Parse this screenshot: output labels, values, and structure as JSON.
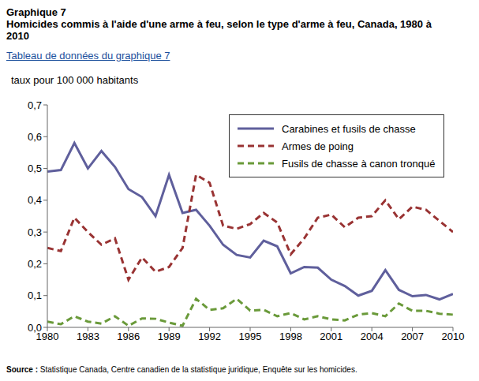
{
  "chart_data": {
    "type": "line",
    "title": "Graphique 7",
    "subtitle": "Homicides commis à l'aide d'une arme à feu, selon le type d'arme à feu, Canada, 1980 à 2010",
    "link": "Tableau de données du graphique 7",
    "y_label": "taux pour 100 000 habitants",
    "source_label": "Source :",
    "source": "Statistique Canada, Centre canadien de la statistique juridique, Enquête sur les homicides.",
    "x": [
      1980,
      1981,
      1982,
      1983,
      1984,
      1985,
      1986,
      1987,
      1988,
      1989,
      1990,
      1991,
      1992,
      1993,
      1994,
      1995,
      1996,
      1997,
      1998,
      1999,
      2000,
      2001,
      2002,
      2003,
      2004,
      2005,
      2006,
      2007,
      2008,
      2009,
      2010
    ],
    "xlim": [
      1980,
      2010
    ],
    "xticks": [
      1980,
      1983,
      1986,
      1989,
      1992,
      1995,
      1998,
      2001,
      2004,
      2007,
      2010
    ],
    "ylim": [
      0,
      0.7
    ],
    "yticks": [
      {
        "value": 0,
        "label": "0,0"
      },
      {
        "value": 0.1,
        "label": "0,1"
      },
      {
        "value": 0.2,
        "label": "0,2"
      },
      {
        "value": 0.3,
        "label": "0,3"
      },
      {
        "value": 0.4,
        "label": "0,4"
      },
      {
        "value": 0.5,
        "label": "0,5"
      },
      {
        "value": 0.6,
        "label": "0,6"
      },
      {
        "value": 0.7,
        "label": "0,7"
      }
    ],
    "grid": false,
    "legend": "top-right",
    "series": [
      {
        "name": "Carabines et fusils de chasse",
        "color": "#5f5f9c",
        "line_style": "solid",
        "values": [
          0.49,
          0.495,
          0.58,
          0.5,
          0.555,
          0.505,
          0.435,
          0.41,
          0.35,
          0.48,
          0.36,
          0.37,
          0.32,
          0.26,
          0.228,
          0.22,
          0.273,
          0.255,
          0.17,
          0.19,
          0.188,
          0.15,
          0.13,
          0.1,
          0.115,
          0.18,
          0.118,
          0.098,
          0.102,
          0.088,
          0.105
        ]
      },
      {
        "name": "Armes de poing",
        "color": "#993333",
        "line_style": "dashed",
        "values": [
          0.25,
          0.24,
          0.345,
          0.3,
          0.26,
          0.28,
          0.15,
          0.22,
          0.175,
          0.19,
          0.25,
          0.48,
          0.455,
          0.32,
          0.31,
          0.325,
          0.36,
          0.33,
          0.23,
          0.28,
          0.345,
          0.355,
          0.315,
          0.345,
          0.35,
          0.4,
          0.34,
          0.38,
          0.37,
          0.335,
          0.3
        ]
      },
      {
        "name": "Fusils de chasse à canon tronqué",
        "color": "#6a9a3a",
        "line_style": "dashed",
        "values": [
          0.018,
          0.01,
          0.035,
          0.018,
          0.012,
          0.035,
          0.005,
          0.028,
          0.027,
          0.015,
          0.005,
          0.09,
          0.055,
          0.06,
          0.09,
          0.053,
          0.055,
          0.035,
          0.045,
          0.025,
          0.035,
          0.025,
          0.022,
          0.04,
          0.045,
          0.035,
          0.075,
          0.052,
          0.052,
          0.043,
          0.04
        ]
      }
    ]
  }
}
